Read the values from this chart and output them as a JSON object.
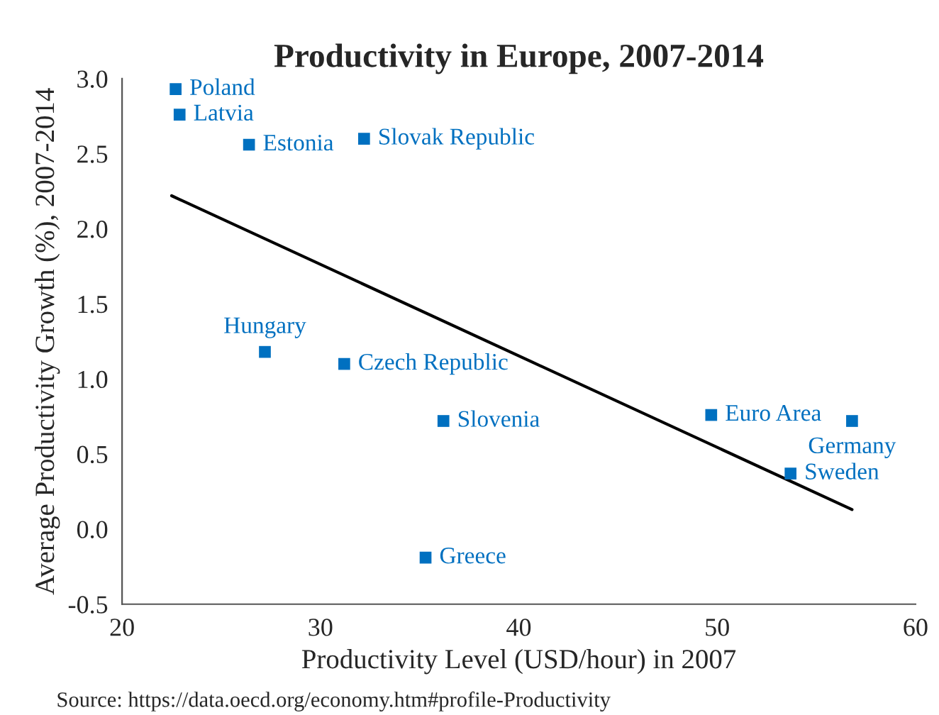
{
  "chart_data": {
    "type": "scatter",
    "title": "Productivity in Europe, 2007-2014",
    "xlabel": "Productivity Level (USD/hour) in 2007",
    "ylabel": "Average Productivity Growth (%), 2007-2014",
    "series": [
      {
        "color": "#0070c0",
        "marker": "square",
        "x": [
          22.7,
          22.9,
          26.4,
          32.2,
          27.2,
          31.2,
          36.2,
          35.3,
          49.7,
          56.8,
          53.7
        ],
        "values": [
          2.93,
          2.76,
          2.56,
          2.6,
          1.18,
          1.1,
          0.72,
          -0.19,
          0.76,
          0.72,
          0.37
        ]
      },
      {
        "type": "line",
        "color": "#000000",
        "x": [
          22.5,
          56.8
        ],
        "values": [
          2.22,
          0.13
        ]
      }
    ],
    "annotations": [
      {
        "text": "Poland",
        "x": 22.7,
        "y": 2.93
      },
      {
        "text": "Latvia",
        "x": 22.9,
        "y": 2.76
      },
      {
        "text": "Estonia",
        "x": 26.4,
        "y": 2.56
      },
      {
        "text": "Slovak Republic",
        "x": 32.2,
        "y": 2.6
      },
      {
        "text": "Hungary",
        "x": 27.2,
        "y": 1.18
      },
      {
        "text": "Czech Republic",
        "x": 31.2,
        "y": 1.1
      },
      {
        "text": "Slovenia",
        "x": 36.2,
        "y": 0.72
      },
      {
        "text": "Greece",
        "x": 35.3,
        "y": -0.19
      },
      {
        "text": "Euro Area",
        "x": 49.7,
        "y": 0.76
      },
      {
        "text": "Germany",
        "x": 56.8,
        "y": 0.72
      },
      {
        "text": "Sweden",
        "x": 53.7,
        "y": 0.37
      },
      "Source: https://data.oecd.org/economy.htm#profile-Productivity"
    ],
    "xlim": [
      20,
      60
    ],
    "xticks": [
      20,
      30,
      40,
      50,
      60
    ],
    "ylim": [
      -0.5,
      3.0
    ],
    "yticks": [
      {
        "value": -0.5,
        "label": "-0.5"
      },
      {
        "value": 0.0,
        "label": "0.0"
      },
      {
        "value": 0.5,
        "label": "0.5"
      },
      {
        "value": 1.0,
        "label": "1.0"
      },
      {
        "value": 1.5,
        "label": "1.5"
      },
      {
        "value": 2.0,
        "label": "2.0"
      },
      {
        "value": 2.5,
        "label": "2.5"
      },
      {
        "value": 3.0,
        "label": "3.0"
      }
    ],
    "grid": false
  }
}
